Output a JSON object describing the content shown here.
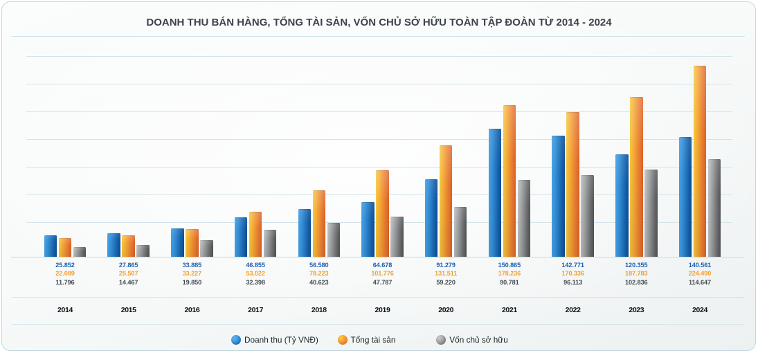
{
  "title": "DOANH THU BÁN HÀNG, TỔNG TÀI SẢN, VỐN CHỦ SỞ HỮU TOÀN TẬP ĐOÀN TỪ 2014 - 2024",
  "colors": {
    "blue": "#1a6cb8",
    "orange": "#f0952b",
    "gray": "#8a8a8a",
    "grid_line": "#d3e3e7",
    "divider": "#cde1e6",
    "title_text": "#3b434c",
    "year_text": "#0e1216"
  },
  "chart_data": {
    "type": "bar",
    "title": "DOANH THU BÁN HÀNG, TỔNG TÀI SẢN, VỐN CHỦ SỞ HỮU TOÀN TẬP ĐOÀN TỪ 2014 - 2024",
    "categories": [
      "2014",
      "2015",
      "2016",
      "2017",
      "2018",
      "2019",
      "2020",
      "2021",
      "2022",
      "2023",
      "2024"
    ],
    "series": [
      {
        "name": "Doanh thu (Tỷ VNĐ)",
        "color": "blue",
        "values": [
          25852,
          27865,
          33885,
          46855,
          56580,
          64678,
          91279,
          150865,
          142771,
          120355,
          140561
        ],
        "labels": [
          "25.852",
          "27.865",
          "33.885",
          "46.855",
          "56.580",
          "64.678",
          "91.279",
          "150.865",
          "142.771",
          "120.355",
          "140.561"
        ]
      },
      {
        "name": "Tổng tài sản",
        "color": "orange",
        "values": [
          22089,
          25507,
          33227,
          53022,
          78223,
          101776,
          131511,
          178236,
          170336,
          187783,
          224490
        ],
        "labels": [
          "22.089",
          "25.507",
          "33.227",
          "53.022",
          "78.223",
          "101.776",
          "131.511",
          "178.236",
          "170.336",
          "187.783",
          "224.490"
        ]
      },
      {
        "name": "Vốn chủ sở hữu",
        "color": "gray",
        "values": [
          11796,
          14467,
          19850,
          32398,
          40623,
          47787,
          59220,
          90781,
          96113,
          102836,
          114647
        ],
        "labels": [
          "11.796",
          "14.467",
          "19.850",
          "32.398",
          "40.623",
          "47.787",
          "59.220",
          "90.781",
          "96.113",
          "102.836",
          "114.647"
        ]
      }
    ],
    "xlabel": "",
    "ylabel": "",
    "ylim": [
      0,
      244000
    ],
    "grid": true,
    "gridline_count": 7,
    "legend_position": "bottom"
  },
  "legend": {
    "items": [
      {
        "label": "Doanh thu (Tỷ VNĐ)",
        "color": "blue"
      },
      {
        "label": "Tổng tài sản",
        "color": "orange"
      },
      {
        "label": "Vốn chủ sở hữu",
        "color": "gray"
      }
    ]
  }
}
